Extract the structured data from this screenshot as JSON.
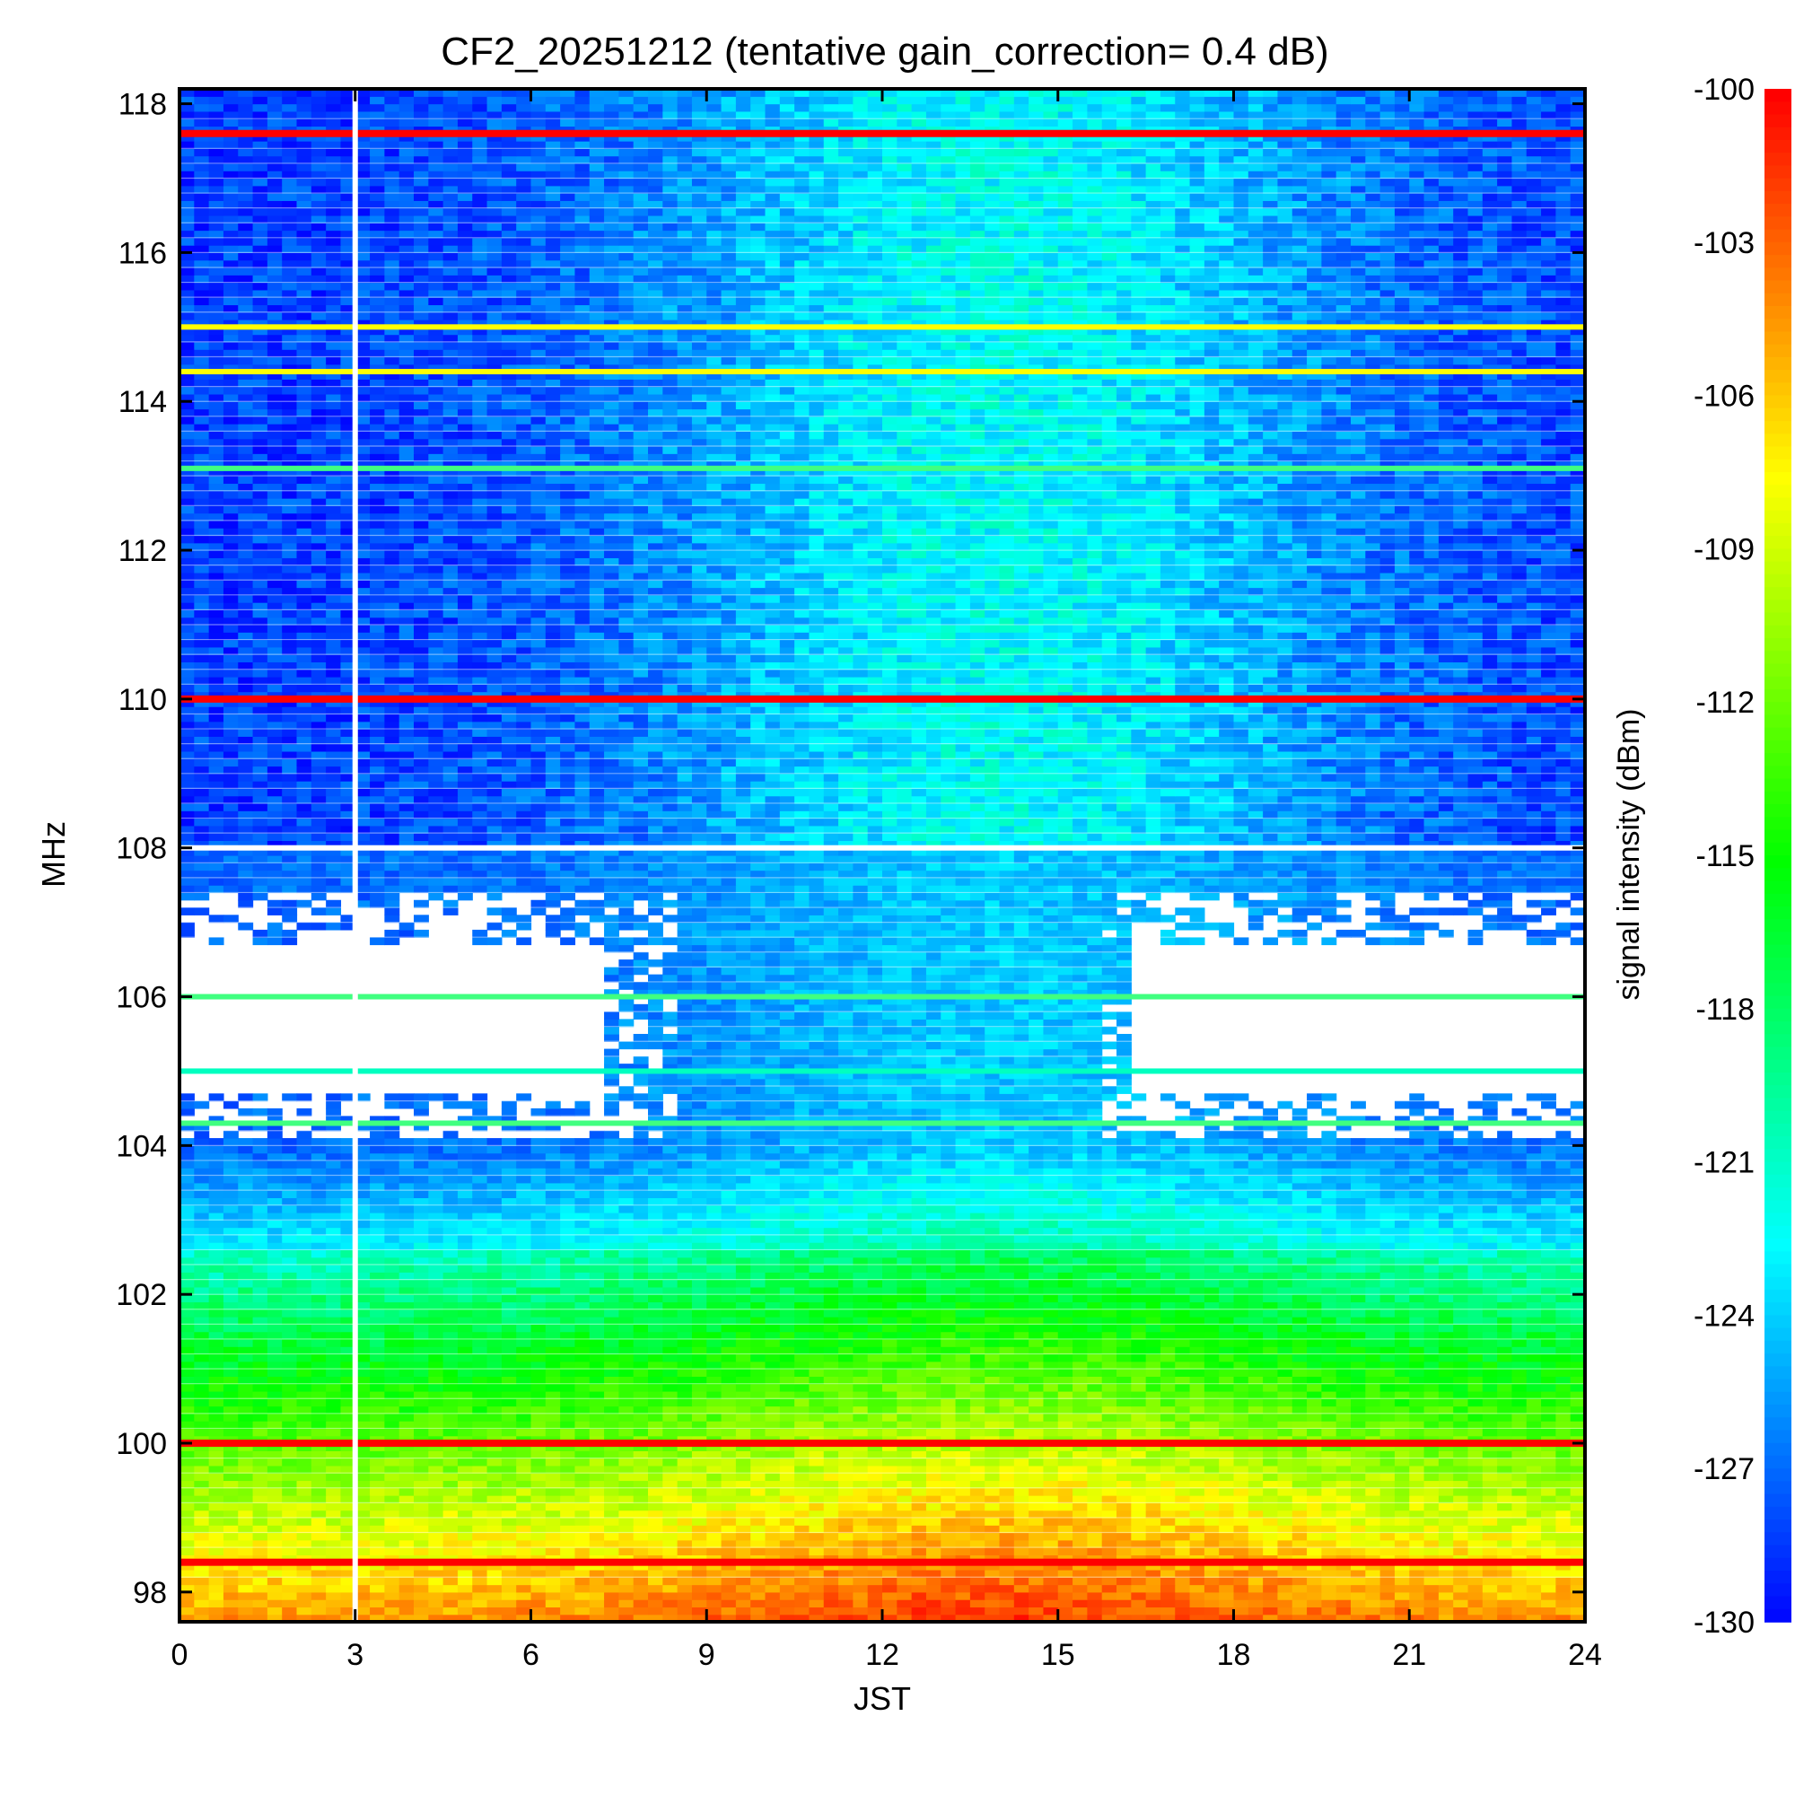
{
  "chart_data": {
    "type": "heatmap",
    "title": "CF2_20251212 (tentative gain_correction=  0.4 dB)",
    "xlabel": "JST",
    "ylabel": "MHz",
    "colorbar_label": "signal intensity (dBm)",
    "xlim": [
      0,
      24
    ],
    "ylim": [
      97.6,
      118.2
    ],
    "clim": [
      -130,
      -100
    ],
    "x_ticks": [
      0,
      3,
      6,
      9,
      12,
      15,
      18,
      21,
      24
    ],
    "y_ticks": [
      98,
      100,
      102,
      104,
      106,
      108,
      110,
      112,
      114,
      116,
      118
    ],
    "colorbar_ticks": [
      -100,
      -103,
      -106,
      -109,
      -112,
      -115,
      -118,
      -121,
      -124,
      -127,
      -130
    ],
    "colormap": [
      "#0000ff",
      "#0080ff",
      "#00ffff",
      "#00ff80",
      "#00ff00",
      "#80ff00",
      "#ffff00",
      "#ff8000",
      "#ff0000"
    ],
    "strong_carriers_mhz": [
      100.0,
      98.4,
      110.0,
      117.6
    ],
    "moderate_carriers_mhz": [
      115.0,
      114.4,
      113.1,
      105.0,
      106.0,
      104.3
    ],
    "data_gap_jst": 3.0,
    "diurnal_noise_peak_jst": [
      12.5,
      15.5
    ]
  }
}
